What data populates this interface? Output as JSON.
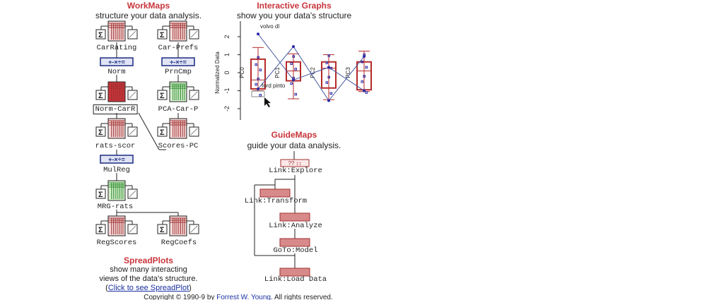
{
  "workmaps": {
    "title": "WorkMaps",
    "subtitle": "structure your data analysis.",
    "nodes": [
      "CarRating",
      "Car-Prefs",
      "Norm",
      "PrnCmp",
      "Norm-CarR",
      "PCA-Car-P",
      "rats-scor",
      "Scores-PC",
      "MulReg",
      "MRG-rats",
      "RegScores",
      "RegCoefs"
    ],
    "operator_glyphs": "+-×÷="
  },
  "graphs": {
    "title": "Interactive Graphs",
    "subtitle": "show you your data's structure",
    "ylabel": "Normalized Data",
    "yticks": [
      "2",
      "1",
      "0",
      "-1",
      "-2"
    ],
    "variables": [
      "PC0",
      "PC1",
      "PC2",
      "PC3"
    ],
    "point_labels": [
      "volvo dl",
      "ford pinto"
    ]
  },
  "guidemaps": {
    "title": "GuideMaps",
    "subtitle": "guide your data analysis.",
    "steps": [
      "Link:Explore",
      "Link:Transform",
      "Link:Analyze",
      "GoTo:Model",
      "Link:Load Data"
    ],
    "explore_glyphs": "?? ↕↕"
  },
  "spreadplots": {
    "title": "SpreadPlots",
    "line1": "show many interacting",
    "line2": "views of the data's structure.",
    "link_open": "(",
    "link": "Click to see SpreadPlot",
    "link_close": ")"
  },
  "footer": {
    "prefix": "Copyright © 1990-9 by ",
    "author": "Forrest W. Young",
    "suffix": ". All rights reserved."
  },
  "colors": {
    "accent": "#c8343a",
    "box": "#b52a2a",
    "link": "#1a2fa0",
    "point": "#2a2aa8"
  }
}
